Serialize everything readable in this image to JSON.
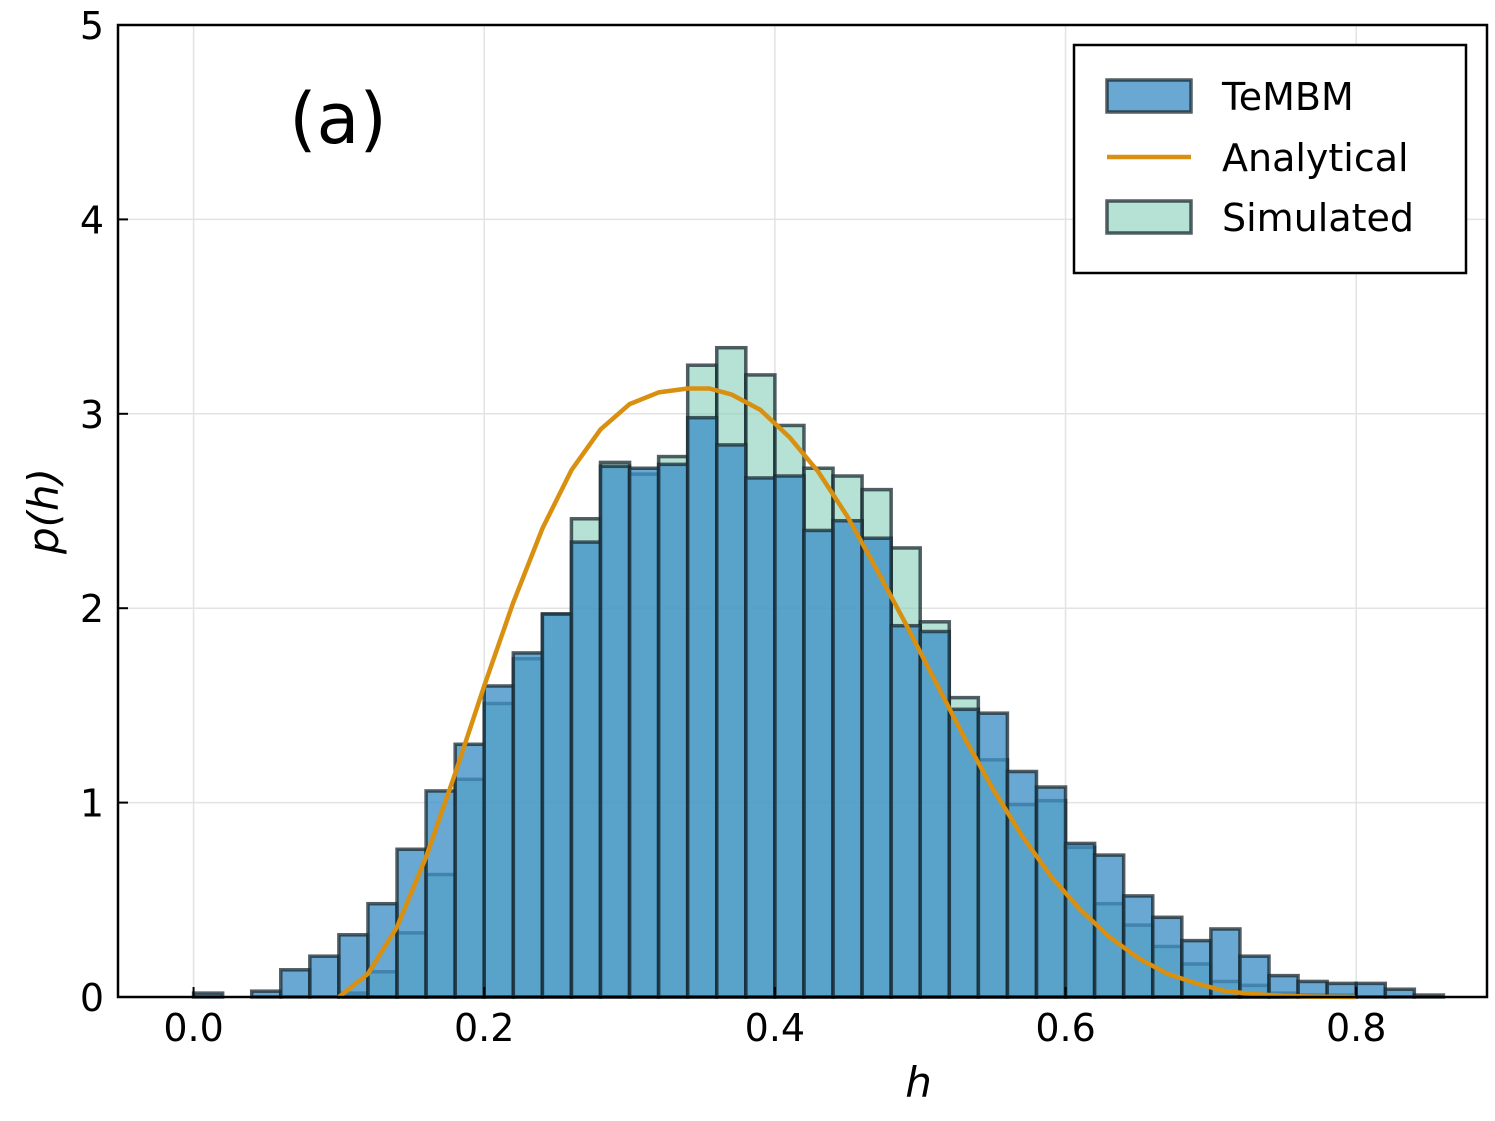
{
  "chart_data": {
    "type": "bar",
    "title": "",
    "annotation": "(a)",
    "xlabel": "h",
    "ylabel": "p(h)",
    "xlim": [
      -0.052,
      0.89
    ],
    "ylim": [
      0,
      5
    ],
    "x_ticks": [
      0.0,
      0.2,
      0.4,
      0.6,
      0.8
    ],
    "x_tick_labels": [
      "0.0",
      "0.2",
      "0.4",
      "0.6",
      "0.8"
    ],
    "y_ticks": [
      0,
      1,
      2,
      3,
      4,
      5
    ],
    "y_tick_labels": [
      "0",
      "1",
      "2",
      "3",
      "4",
      "5"
    ],
    "grid": true,
    "legend_position": "top-right",
    "bin_width": 0.02,
    "colors": {
      "tembm": "#3f8fc5",
      "simulated": "#83cfb7",
      "analytical": "#d98f10",
      "edge": "#1a2a30"
    },
    "series": [
      {
        "name": "TeMBM",
        "kind": "histogram",
        "bin_start": 0.0,
        "values": [
          0.02,
          0.0,
          0.03,
          0.14,
          0.21,
          0.32,
          0.48,
          0.76,
          1.06,
          1.3,
          1.6,
          1.77,
          1.97,
          2.34,
          2.73,
          2.72,
          2.74,
          2.98,
          2.84,
          2.67,
          2.68,
          2.4,
          2.45,
          2.36,
          1.91,
          1.88,
          1.48,
          1.46,
          1.16,
          1.08,
          0.79,
          0.73,
          0.52,
          0.41,
          0.29,
          0.35,
          0.21,
          0.11,
          0.08,
          0.07,
          0.07,
          0.04,
          0.01
        ]
      },
      {
        "name": "Simulated",
        "kind": "histogram",
        "bin_start": 0.1,
        "values": [
          0.02,
          0.13,
          0.33,
          0.63,
          1.12,
          1.51,
          1.74,
          1.97,
          2.46,
          2.75,
          2.69,
          2.78,
          3.25,
          3.34,
          3.2,
          2.94,
          2.72,
          2.68,
          2.61,
          2.31,
          1.93,
          1.54,
          1.22,
          0.99,
          1.01,
          0.77,
          0.48,
          0.37,
          0.26,
          0.17,
          0.08,
          0.06,
          0.02,
          0.01,
          0.01
        ]
      },
      {
        "name": "Analytical",
        "kind": "line",
        "x": [
          0.1,
          0.12,
          0.14,
          0.16,
          0.18,
          0.2,
          0.22,
          0.24,
          0.26,
          0.28,
          0.3,
          0.32,
          0.34,
          0.355,
          0.37,
          0.39,
          0.41,
          0.43,
          0.45,
          0.47,
          0.49,
          0.51,
          0.53,
          0.55,
          0.57,
          0.59,
          0.61,
          0.63,
          0.65,
          0.67,
          0.69,
          0.71,
          0.73,
          0.75,
          0.77,
          0.8
        ],
        "y": [
          0.0,
          0.12,
          0.36,
          0.72,
          1.15,
          1.6,
          2.03,
          2.41,
          2.71,
          2.92,
          3.05,
          3.11,
          3.13,
          3.13,
          3.1,
          3.02,
          2.88,
          2.7,
          2.47,
          2.2,
          1.92,
          1.63,
          1.34,
          1.07,
          0.83,
          0.62,
          0.45,
          0.31,
          0.2,
          0.12,
          0.07,
          0.03,
          0.015,
          0.006,
          0.002,
          0.0
        ]
      }
    ],
    "legend": [
      {
        "name": "TeMBM",
        "kind": "patch"
      },
      {
        "name": "Analytical",
        "kind": "line"
      },
      {
        "name": "Simulated",
        "kind": "patch"
      }
    ]
  }
}
